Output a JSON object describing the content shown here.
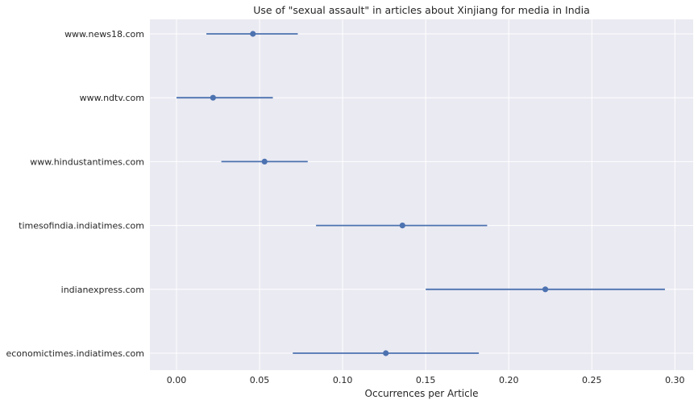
{
  "chart_data": {
    "type": "errorbar",
    "title": "Use of \"sexual assault\" in articles about Xinjiang for media in India",
    "xlabel": "Occurrences per Article",
    "ylabel": "",
    "xlim": [
      -0.016,
      0.311
    ],
    "xticks": [
      0.0,
      0.05,
      0.1,
      0.15,
      0.2,
      0.25,
      0.3
    ],
    "xtick_labels": [
      "0.00",
      "0.05",
      "0.10",
      "0.15",
      "0.20",
      "0.25",
      "0.30"
    ],
    "grid": true,
    "background": "#eaeaf2",
    "grid_color": "#ffffff",
    "series_color": "#4c72b0",
    "categories": [
      "www.news18.com",
      "www.ndtv.com",
      "www.hindustantimes.com",
      "timesofindia.indiatimes.com",
      "indianexpress.com",
      "economictimes.indiatimes.com"
    ],
    "values": [
      0.046,
      0.022,
      0.053,
      0.136,
      0.222,
      0.126
    ],
    "lower": [
      0.018,
      0.0,
      0.027,
      0.084,
      0.15,
      0.07
    ],
    "upper": [
      0.073,
      0.058,
      0.079,
      0.187,
      0.294,
      0.182
    ]
  }
}
